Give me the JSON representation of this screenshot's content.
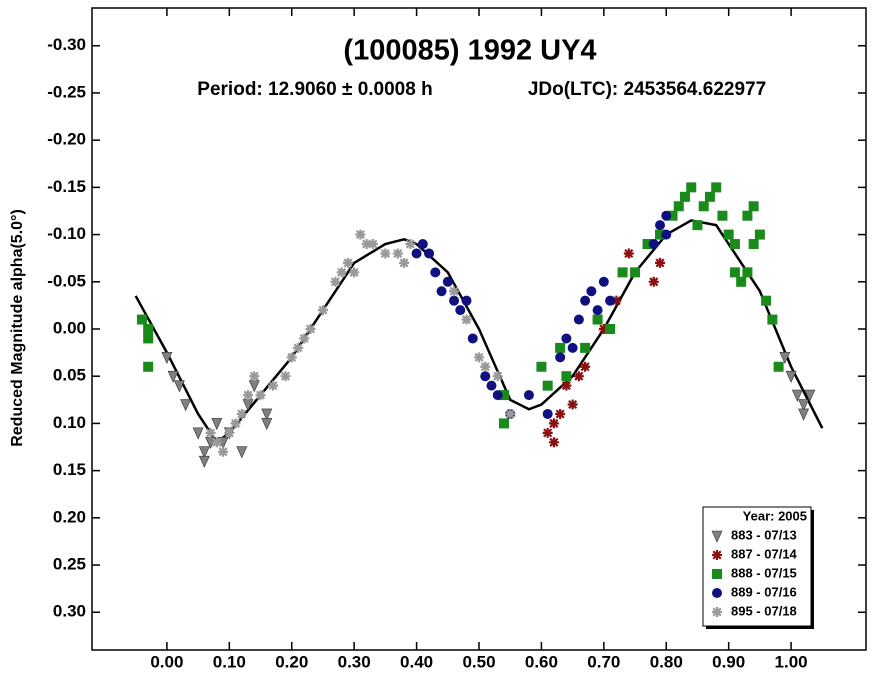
{
  "chart_data": {
    "type": "scatter",
    "title": "(100085) 1992 UY4",
    "subtitle": "Period: 12.9060 ± 0.0008 h",
    "annotation": "JDo(LTC): 2453564.622977",
    "y_label": "Reduced Magnitude alpha(5.0°)",
    "xlim": [
      -0.12,
      1.12
    ],
    "ylim": [
      0.34,
      -0.34
    ],
    "xticks": [
      {
        "value": 0,
        "label": "0.00"
      },
      {
        "value": 0.1,
        "label": "0.10"
      },
      {
        "value": 0.2,
        "label": "0.20"
      },
      {
        "value": 0.3,
        "label": "0.30"
      },
      {
        "value": 0.4,
        "label": "0.40"
      },
      {
        "value": 0.5,
        "label": "0.50"
      },
      {
        "value": 0.6,
        "label": "0.60"
      },
      {
        "value": 0.7,
        "label": "0.70"
      },
      {
        "value": 0.8,
        "label": "0.80"
      },
      {
        "value": 0.9,
        "label": "0.90"
      },
      {
        "value": 1,
        "label": "1.00"
      }
    ],
    "yticks": [
      {
        "value": -0.3,
        "label": "-0.30"
      },
      {
        "value": -0.25,
        "label": "-0.25"
      },
      {
        "value": -0.2,
        "label": "-0.20"
      },
      {
        "value": -0.15,
        "label": "-0.15"
      },
      {
        "value": -0.1,
        "label": "-0.10"
      },
      {
        "value": -0.05,
        "label": "-0.05"
      },
      {
        "value": 0,
        "label": "0.00"
      },
      {
        "value": 0.05,
        "label": "0.05"
      },
      {
        "value": 0.1,
        "label": "0.10"
      },
      {
        "value": 0.15,
        "label": "0.15"
      },
      {
        "value": 0.2,
        "label": "0.20"
      },
      {
        "value": 0.25,
        "label": "0.25"
      },
      {
        "value": 0.3,
        "label": "0.30"
      }
    ],
    "legend_title": "Year: 2005",
    "legend_position": "lower right",
    "fit": {
      "color": "#000000",
      "x": [
        -0.05,
        0,
        0.05,
        0.08,
        0.1,
        0.15,
        0.2,
        0.25,
        0.3,
        0.35,
        0.38,
        0.4,
        0.45,
        0.5,
        0.55,
        0.58,
        0.6,
        0.65,
        0.7,
        0.75,
        0.8,
        0.84,
        0.88,
        0.9,
        0.95,
        1.0,
        1.05
      ],
      "values": [
        -0.035,
        0.025,
        0.09,
        0.12,
        0.11,
        0.07,
        0.03,
        -0.02,
        -0.07,
        -0.09,
        -0.095,
        -0.09,
        -0.06,
        0.0,
        0.075,
        0.085,
        0.08,
        0.05,
        0.0,
        -0.06,
        -0.1,
        -0.115,
        -0.11,
        -0.09,
        -0.04,
        0.04,
        0.105
      ]
    },
    "series": [
      {
        "name": "883 - 07/13",
        "color": "#808080",
        "marker": "triangle-down",
        "x": [
          0.0,
          0.01,
          0.02,
          0.03,
          0.05,
          0.06,
          0.06,
          0.07,
          0.08,
          0.09,
          0.1,
          0.12,
          0.13,
          0.14,
          0.16,
          0.16,
          0.99,
          1.0,
          1.01,
          1.02,
          1.03,
          1.02
        ],
        "values": [
          0.03,
          0.05,
          0.06,
          0.08,
          0.11,
          0.13,
          0.14,
          0.12,
          0.1,
          0.12,
          0.11,
          0.13,
          0.08,
          0.06,
          0.09,
          0.1,
          0.03,
          0.05,
          0.07,
          0.08,
          0.07,
          0.09
        ]
      },
      {
        "name": "887 - 07/14",
        "color": "#8b1010",
        "marker": "asterisk",
        "x": [
          0.61,
          0.62,
          0.63,
          0.64,
          0.65,
          0.66,
          0.67,
          0.7,
          0.72,
          0.74,
          0.78,
          0.79,
          0.62
        ],
        "values": [
          0.11,
          0.1,
          0.09,
          0.06,
          0.08,
          0.05,
          0.04,
          0.0,
          -0.03,
          -0.08,
          -0.05,
          -0.07,
          0.12
        ]
      },
      {
        "name": "888 - 07/15",
        "color": "#1a8a1a",
        "marker": "square",
        "x": [
          -0.04,
          -0.03,
          -0.03,
          -0.03,
          0.54,
          0.54,
          0.6,
          0.61,
          0.63,
          0.64,
          0.67,
          0.69,
          0.71,
          0.73,
          0.75,
          0.77,
          0.79,
          0.81,
          0.82,
          0.83,
          0.84,
          0.85,
          0.86,
          0.87,
          0.88,
          0.89,
          0.9,
          0.91,
          0.91,
          0.92,
          0.93,
          0.94,
          0.95,
          0.96,
          0.97,
          0.98,
          0.93,
          0.94
        ],
        "values": [
          -0.01,
          0.01,
          0.0,
          0.04,
          0.1,
          0.07,
          0.04,
          0.06,
          0.02,
          0.05,
          0.02,
          -0.01,
          0.0,
          -0.06,
          -0.06,
          -0.09,
          -0.1,
          -0.12,
          -0.13,
          -0.14,
          -0.15,
          -0.11,
          -0.13,
          -0.14,
          -0.15,
          -0.12,
          -0.1,
          -0.09,
          -0.06,
          -0.05,
          -0.06,
          -0.09,
          -0.1,
          -0.03,
          -0.01,
          0.04,
          -0.12,
          -0.13
        ]
      },
      {
        "name": "889 - 07/16",
        "color": "#101080",
        "marker": "circle",
        "x": [
          0.4,
          0.41,
          0.42,
          0.43,
          0.44,
          0.45,
          0.46,
          0.47,
          0.48,
          0.49,
          0.51,
          0.52,
          0.53,
          0.55,
          0.58,
          0.61,
          0.63,
          0.64,
          0.65,
          0.66,
          0.67,
          0.68,
          0.69,
          0.7,
          0.71,
          0.78,
          0.79,
          0.8,
          0.8
        ],
        "values": [
          -0.08,
          -0.09,
          -0.08,
          -0.06,
          -0.04,
          -0.05,
          -0.03,
          -0.02,
          -0.03,
          0.01,
          0.05,
          0.06,
          0.07,
          0.09,
          0.07,
          0.09,
          0.03,
          0.01,
          0.02,
          -0.01,
          -0.03,
          -0.04,
          -0.02,
          -0.05,
          -0.03,
          -0.09,
          -0.11,
          -0.12,
          -0.1
        ]
      },
      {
        "name": "895 - 07/18",
        "color": "#999999",
        "marker": "asterisk",
        "x": [
          0.07,
          0.08,
          0.09,
          0.1,
          0.11,
          0.12,
          0.13,
          0.14,
          0.15,
          0.17,
          0.19,
          0.2,
          0.21,
          0.22,
          0.23,
          0.25,
          0.27,
          0.28,
          0.29,
          0.3,
          0.31,
          0.32,
          0.33,
          0.35,
          0.37,
          0.38,
          0.39,
          0.46,
          0.48,
          0.5,
          0.51,
          0.53,
          0.55
        ],
        "values": [
          0.11,
          0.12,
          0.13,
          0.11,
          0.1,
          0.09,
          0.07,
          0.05,
          0.07,
          0.06,
          0.05,
          0.03,
          0.02,
          0.01,
          0.0,
          -0.02,
          -0.05,
          -0.06,
          -0.07,
          -0.06,
          -0.1,
          -0.09,
          -0.09,
          -0.08,
          -0.08,
          -0.07,
          -0.09,
          -0.04,
          -0.01,
          0.03,
          0.04,
          0.05,
          0.09
        ]
      }
    ]
  }
}
